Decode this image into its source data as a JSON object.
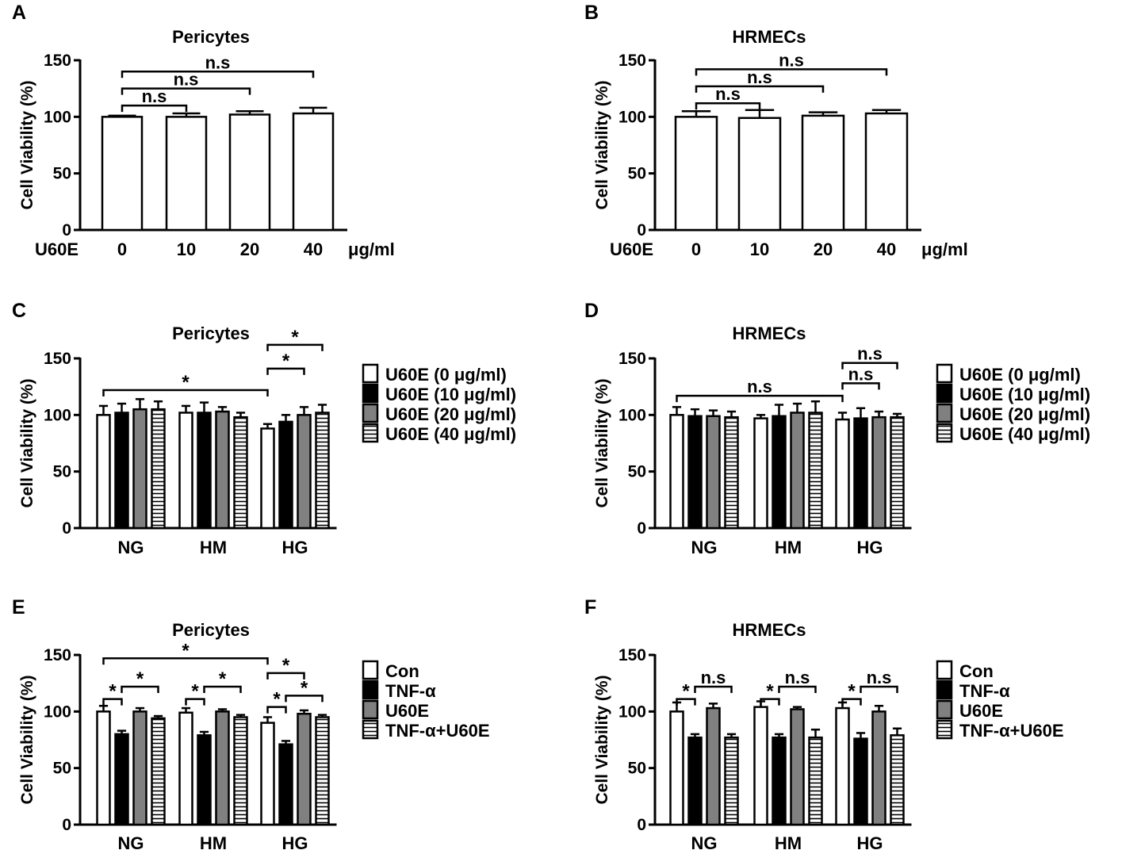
{
  "figure": {
    "yaxis_label": "Cell Viability (%)",
    "y_ticks": [
      "0",
      "50",
      "100",
      "150"
    ]
  },
  "chart_data": [
    {
      "panel": "A",
      "type": "bar",
      "title": "Pericytes",
      "ylabel": "Cell Viability (%)",
      "ylim": [
        0,
        150
      ],
      "grid": false,
      "x_prefix": "U60E",
      "x_unit": "μg/ml",
      "categories": [
        "0",
        "10",
        "20",
        "40"
      ],
      "values": [
        100,
        100,
        102,
        103
      ],
      "errors": [
        1,
        3,
        3,
        5
      ],
      "fills": [
        "white",
        "white",
        "white",
        "white"
      ],
      "brackets": [
        {
          "from": 0,
          "to": 1,
          "label": "n.s",
          "y": 110
        },
        {
          "from": 0,
          "to": 2,
          "label": "n.s",
          "y": 125
        },
        {
          "from": 0,
          "to": 3,
          "label": "n.s",
          "y": 140
        }
      ]
    },
    {
      "panel": "B",
      "type": "bar",
      "title": "HRMECs",
      "ylabel": "Cell Viability (%)",
      "ylim": [
        0,
        150
      ],
      "grid": false,
      "x_prefix": "U60E",
      "x_unit": "μg/ml",
      "categories": [
        "0",
        "10",
        "20",
        "40"
      ],
      "values": [
        100,
        99,
        101,
        103
      ],
      "errors": [
        5,
        7,
        3,
        3
      ],
      "fills": [
        "white",
        "white",
        "white",
        "white"
      ],
      "brackets": [
        {
          "from": 0,
          "to": 1,
          "label": "n.s",
          "y": 112
        },
        {
          "from": 0,
          "to": 2,
          "label": "n.s",
          "y": 127
        },
        {
          "from": 0,
          "to": 3,
          "label": "n.s",
          "y": 142
        }
      ]
    },
    {
      "panel": "C",
      "type": "bar",
      "title": "Pericytes",
      "ylabel": "Cell Viability (%)",
      "ylim": [
        0,
        150
      ],
      "grid": false,
      "categories": [
        "NG",
        "HM",
        "HG"
      ],
      "series": [
        {
          "name": "U60E (0 μg/ml)",
          "fill": "white",
          "values": [
            100,
            102,
            88
          ],
          "errors": [
            8,
            6,
            4
          ]
        },
        {
          "name": "U60E (10 μg/ml)",
          "fill": "black",
          "values": [
            102,
            102,
            94
          ],
          "errors": [
            8,
            9,
            6
          ]
        },
        {
          "name": "U60E (20 μg/ml)",
          "fill": "gray",
          "values": [
            105,
            103,
            100
          ],
          "errors": [
            9,
            4,
            7
          ]
        },
        {
          "name": "U60E (40 μg/ml)",
          "fill": "hatch",
          "values": [
            105,
            98,
            102
          ],
          "errors": [
            7,
            4,
            7
          ]
        }
      ],
      "brackets": [
        {
          "from": [
            0,
            0
          ],
          "to": [
            2,
            0
          ],
          "label": "*",
          "y": 122
        },
        {
          "from": [
            2,
            0
          ],
          "to": [
            2,
            2
          ],
          "label": "*",
          "y": 141
        },
        {
          "from": [
            2,
            0
          ],
          "to": [
            2,
            3
          ],
          "label": "*",
          "y": 162
        }
      ],
      "legend_position": "right"
    },
    {
      "panel": "D",
      "type": "bar",
      "title": "HRMECs",
      "ylabel": "Cell Viability (%)",
      "ylim": [
        0,
        150
      ],
      "grid": false,
      "categories": [
        "NG",
        "HM",
        "HG"
      ],
      "series": [
        {
          "name": "U60E (0 μg/ml)",
          "fill": "white",
          "values": [
            100,
            97,
            96
          ],
          "errors": [
            7,
            3,
            6
          ]
        },
        {
          "name": "U60E (10 μg/ml)",
          "fill": "black",
          "values": [
            99,
            99,
            97
          ],
          "errors": [
            6,
            10,
            9
          ]
        },
        {
          "name": "U60E (20 μg/ml)",
          "fill": "gray",
          "values": [
            99,
            102,
            98
          ],
          "errors": [
            5,
            8,
            5
          ]
        },
        {
          "name": "U60E (40 μg/ml)",
          "fill": "hatch",
          "values": [
            98,
            102,
            98
          ],
          "errors": [
            5,
            10,
            3
          ]
        }
      ],
      "brackets": [
        {
          "from": [
            0,
            0
          ],
          "to": [
            2,
            0
          ],
          "label": "n.s",
          "y": 117
        },
        {
          "from": [
            2,
            0
          ],
          "to": [
            2,
            2
          ],
          "label": "n.s",
          "y": 128
        },
        {
          "from": [
            2,
            0
          ],
          "to": [
            2,
            3
          ],
          "label": "n.s",
          "y": 146
        }
      ],
      "legend_position": "right"
    },
    {
      "panel": "E",
      "type": "bar",
      "title": "Pericytes",
      "ylabel": "Cell Viability (%)",
      "ylim": [
        0,
        150
      ],
      "grid": false,
      "categories": [
        "NG",
        "HM",
        "HG"
      ],
      "series": [
        {
          "name": "Con",
          "fill": "white",
          "values": [
            100,
            99,
            90
          ],
          "errors": [
            5,
            4,
            5
          ]
        },
        {
          "name": "TNF-α",
          "fill": "black",
          "values": [
            80,
            79,
            71
          ],
          "errors": [
            3,
            3,
            3
          ]
        },
        {
          "name": "U60E",
          "fill": "gray",
          "values": [
            100,
            100,
            98
          ],
          "errors": [
            3,
            2,
            3
          ]
        },
        {
          "name": "TNF-α+U60E",
          "fill": "hatch",
          "values": [
            94,
            95,
            95
          ],
          "errors": [
            2,
            2,
            2
          ]
        }
      ],
      "brackets": [
        {
          "from": [
            0,
            0
          ],
          "to": [
            0,
            1
          ],
          "label": "*",
          "y": 111
        },
        {
          "from": [
            0,
            1
          ],
          "to": [
            0,
            3
          ],
          "label": "*",
          "y": 122
        },
        {
          "from": [
            1,
            0
          ],
          "to": [
            1,
            1
          ],
          "label": "*",
          "y": 111
        },
        {
          "from": [
            1,
            1
          ],
          "to": [
            1,
            3
          ],
          "label": "*",
          "y": 122
        },
        {
          "from": [
            2,
            0
          ],
          "to": [
            2,
            1
          ],
          "label": "*",
          "y": 104
        },
        {
          "from": [
            2,
            1
          ],
          "to": [
            2,
            3
          ],
          "label": "*",
          "y": 114
        },
        {
          "from": [
            2,
            0
          ],
          "to": [
            2,
            2
          ],
          "label": "*",
          "y": 134
        },
        {
          "from": [
            0,
            0
          ],
          "to": [
            2,
            0
          ],
          "label": "*",
          "y": 147
        }
      ],
      "legend_position": "right"
    },
    {
      "panel": "F",
      "type": "bar",
      "title": "HRMECs",
      "ylabel": "Cell Viability (%)",
      "ylim": [
        0,
        150
      ],
      "grid": false,
      "categories": [
        "NG",
        "HM",
        "HG"
      ],
      "series": [
        {
          "name": "Con",
          "fill": "white",
          "values": [
            100,
            104,
            103
          ],
          "errors": [
            8,
            5,
            5
          ]
        },
        {
          "name": "TNF-α",
          "fill": "black",
          "values": [
            77,
            77,
            76
          ],
          "errors": [
            3,
            3,
            5
          ]
        },
        {
          "name": "U60E",
          "fill": "gray",
          "values": [
            103,
            102,
            100
          ],
          "errors": [
            4,
            2,
            5
          ]
        },
        {
          "name": "TNF-α+U60E",
          "fill": "hatch",
          "values": [
            77,
            77,
            79
          ],
          "errors": [
            3,
            7,
            6
          ]
        }
      ],
      "brackets": [
        {
          "from": [
            0,
            0
          ],
          "to": [
            0,
            1
          ],
          "label": "*",
          "y": 111
        },
        {
          "from": [
            0,
            1
          ],
          "to": [
            0,
            3
          ],
          "label": "n.s",
          "y": 122
        },
        {
          "from": [
            1,
            0
          ],
          "to": [
            1,
            1
          ],
          "label": "*",
          "y": 111
        },
        {
          "from": [
            1,
            1
          ],
          "to": [
            1,
            3
          ],
          "label": "n.s",
          "y": 122
        },
        {
          "from": [
            2,
            0
          ],
          "to": [
            2,
            1
          ],
          "label": "*",
          "y": 111
        },
        {
          "from": [
            2,
            1
          ],
          "to": [
            2,
            3
          ],
          "label": "n.s",
          "y": 122
        }
      ],
      "legend_position": "right"
    }
  ]
}
